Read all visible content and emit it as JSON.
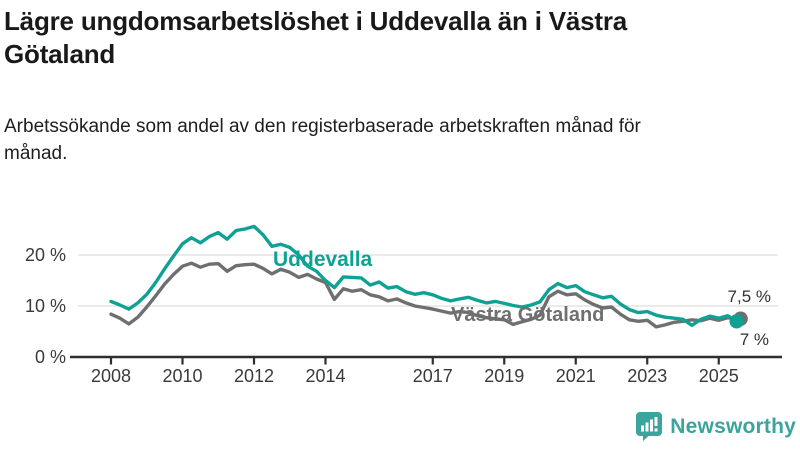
{
  "header": {
    "title": "Lägre ungdomsarbetslöshet i Uddevalla än i Västra Götaland",
    "subtitle": "Arbetssökande som andel av den registerbaserade arbetskraften månad för månad."
  },
  "colors": {
    "uddevalla_line": "#0FA294",
    "vastra_gotaland_line": "#6F6F6F",
    "grid": "#E4E4E4",
    "axis": "#2E2E2E",
    "tick_text": "#3A3A3A",
    "brand_teal": "#3BA49C"
  },
  "chart_data": {
    "type": "line",
    "title": "Lägre ungdomsarbetslöshet i Uddevalla än i Västra Götaland",
    "xlabel": "",
    "ylabel": "Arbetssökande som andel av den registerbaserade arbetskraften",
    "grid": "horizontal",
    "legend_position": "inline-labels-on-lines",
    "xlim": [
      2007.6,
      2026.2
    ],
    "ylim": [
      0,
      28
    ],
    "x_ticks": [
      {
        "value": 2008,
        "label": "2008"
      },
      {
        "value": 2010,
        "label": "2010"
      },
      {
        "value": 2012,
        "label": "2012"
      },
      {
        "value": 2014,
        "label": "2014"
      },
      {
        "value": 2017,
        "label": "2017"
      },
      {
        "value": 2019,
        "label": "2019"
      },
      {
        "value": 2021,
        "label": "2021"
      },
      {
        "value": 2023,
        "label": "2023"
      },
      {
        "value": 2025,
        "label": "2025"
      }
    ],
    "y_ticks": [
      {
        "value": 0,
        "label": "0 %"
      },
      {
        "value": 10,
        "label": "10 %"
      },
      {
        "value": 20,
        "label": "20 %"
      }
    ],
    "x": [
      2008,
      2008.25,
      2008.5,
      2008.75,
      2009,
      2009.25,
      2009.5,
      2009.75,
      2010,
      2010.25,
      2010.5,
      2010.75,
      2011,
      2011.25,
      2011.5,
      2011.75,
      2012,
      2012.25,
      2012.5,
      2012.75,
      2013,
      2013.25,
      2013.5,
      2013.75,
      2014,
      2014.25,
      2014.5,
      2014.75,
      2015,
      2015.25,
      2015.5,
      2015.75,
      2016,
      2016.25,
      2016.5,
      2016.75,
      2017,
      2017.25,
      2017.5,
      2017.75,
      2018,
      2018.25,
      2018.5,
      2018.75,
      2019,
      2019.25,
      2019.5,
      2019.75,
      2020,
      2020.25,
      2020.5,
      2020.75,
      2021,
      2021.25,
      2021.5,
      2021.75,
      2022,
      2022.25,
      2022.5,
      2022.75,
      2023,
      2023.25,
      2023.5,
      2023.75,
      2024,
      2024.25,
      2024.5,
      2024.75,
      2025,
      2025.25,
      2025.5
    ],
    "series": [
      {
        "name": "Uddevalla",
        "color": "#0FA294",
        "end_value_label": "7 %",
        "end_value": 7.0,
        "values": [
          10.9,
          10.2,
          9.4,
          10.6,
          12.3,
          14.6,
          17.3,
          19.8,
          22.2,
          23.4,
          22.4,
          23.6,
          24.4,
          23.1,
          24.8,
          25.1,
          25.6,
          24.0,
          21.7,
          22.1,
          21.5,
          20.0,
          17.8,
          16.8,
          15.0,
          13.6,
          15.7,
          15.6,
          15.5,
          14.1,
          14.7,
          13.5,
          13.8,
          12.8,
          12.3,
          12.6,
          12.2,
          11.5,
          11.0,
          11.4,
          11.7,
          11.1,
          10.6,
          10.9,
          10.5,
          10.1,
          9.8,
          10.2,
          10.8,
          13.2,
          14.4,
          13.6,
          14.0,
          12.8,
          12.2,
          11.6,
          11.9,
          10.4,
          9.3,
          8.7,
          8.9,
          8.2,
          7.8,
          7.6,
          7.4,
          6.2,
          7.4,
          8.0,
          7.6,
          8.1,
          7.0
        ]
      },
      {
        "name": "Västra Götaland",
        "color": "#6F6F6F",
        "end_value_label": "7,5 %",
        "end_value": 7.5,
        "values": [
          8.4,
          7.6,
          6.5,
          7.8,
          9.8,
          12.0,
          14.3,
          16.2,
          17.8,
          18.4,
          17.6,
          18.2,
          18.3,
          16.8,
          17.9,
          18.1,
          18.2,
          17.4,
          16.3,
          17.2,
          16.6,
          15.6,
          16.2,
          15.3,
          14.6,
          11.3,
          13.4,
          12.9,
          13.2,
          12.2,
          11.8,
          11.0,
          11.4,
          10.6,
          10.0,
          9.7,
          9.4,
          9.0,
          8.6,
          8.9,
          8.7,
          8.1,
          7.7,
          7.5,
          7.3,
          6.4,
          6.9,
          7.4,
          8.2,
          11.8,
          12.9,
          12.2,
          12.4,
          11.2,
          10.3,
          9.6,
          9.8,
          8.4,
          7.3,
          7.0,
          7.2,
          5.9,
          6.3,
          6.8,
          7.0,
          7.3,
          7.1,
          7.6,
          7.2,
          7.7,
          7.5
        ]
      }
    ]
  },
  "footer": {
    "brand": "Newsworthy",
    "logo_icon": "bar-chart-speech-bubble-icon"
  }
}
